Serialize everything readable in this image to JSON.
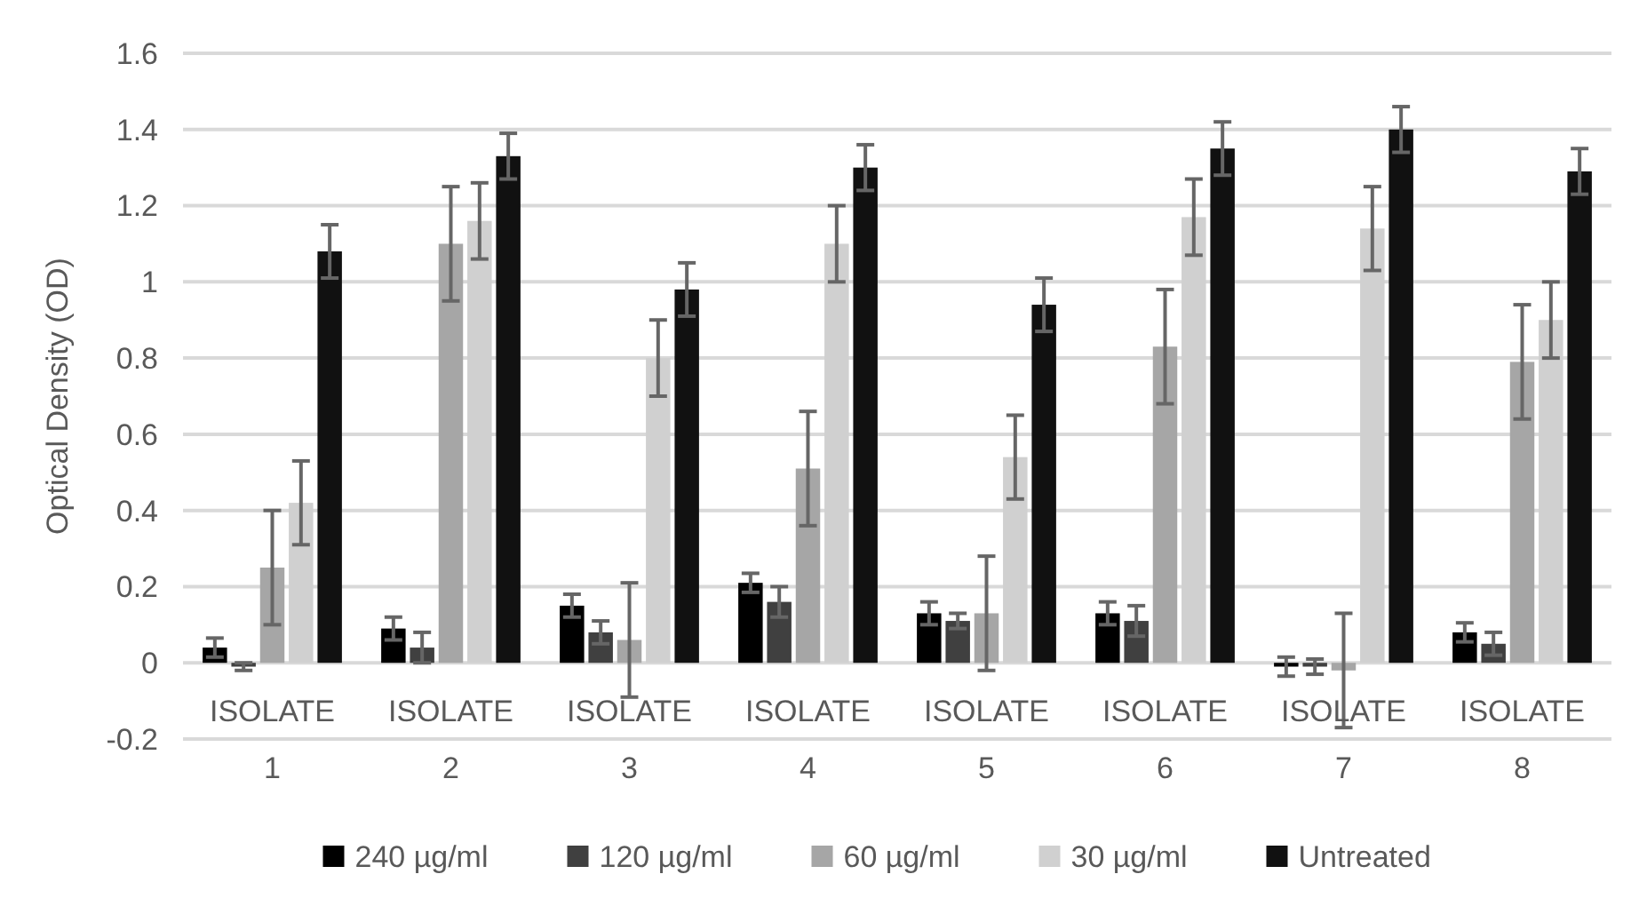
{
  "chart_data": {
    "type": "bar",
    "ylabel": "Optical Density (OD)",
    "categories": [
      "ISOLATE 1",
      "ISOLATE 2",
      "ISOLATE 3",
      "ISOLATE 4",
      "ISOLATE 5",
      "ISOLATE 6",
      "ISOLATE 7",
      "ISOLATE 8"
    ],
    "ylim": [
      -0.2,
      1.6
    ],
    "yticks": [
      -0.2,
      0,
      0.2,
      0.4,
      0.6,
      0.8,
      1,
      1.2,
      1.4,
      1.6
    ],
    "grid": "y",
    "legend": "bottom",
    "series": [
      {
        "name": "240 µg/ml",
        "color": "#000000",
        "values": [
          0.04,
          0.09,
          0.15,
          0.21,
          0.13,
          0.13,
          -0.01,
          0.08
        ],
        "errors": [
          0.025,
          0.03,
          0.03,
          0.025,
          0.03,
          0.03,
          0.025,
          0.025
        ]
      },
      {
        "name": "120 µg/ml",
        "color": "#404040",
        "values": [
          -0.01,
          0.04,
          0.08,
          0.16,
          0.11,
          0.11,
          -0.01,
          0.05
        ],
        "errors": [
          0.01,
          0.04,
          0.03,
          0.04,
          0.02,
          0.04,
          0.02,
          0.03
        ]
      },
      {
        "name": "60 µg/ml",
        "color": "#a6a6a6",
        "values": [
          0.25,
          1.1,
          0.06,
          0.51,
          0.13,
          0.83,
          -0.02,
          0.79
        ],
        "errors": [
          0.15,
          0.15,
          0.15,
          0.15,
          0.15,
          0.15,
          0.15,
          0.15
        ]
      },
      {
        "name": "30 µg/ml",
        "color": "#d0d0d0",
        "values": [
          0.42,
          1.16,
          0.8,
          1.1,
          0.54,
          1.17,
          1.14,
          0.9
        ],
        "errors": [
          0.11,
          0.1,
          0.1,
          0.1,
          0.11,
          0.1,
          0.11,
          0.1
        ]
      },
      {
        "name": "Untreated",
        "color": "#111111",
        "values": [
          1.08,
          1.33,
          0.98,
          1.3,
          0.94,
          1.35,
          1.4,
          1.29
        ],
        "errors": [
          0.07,
          0.06,
          0.07,
          0.06,
          0.07,
          0.07,
          0.06,
          0.06
        ]
      }
    ]
  }
}
